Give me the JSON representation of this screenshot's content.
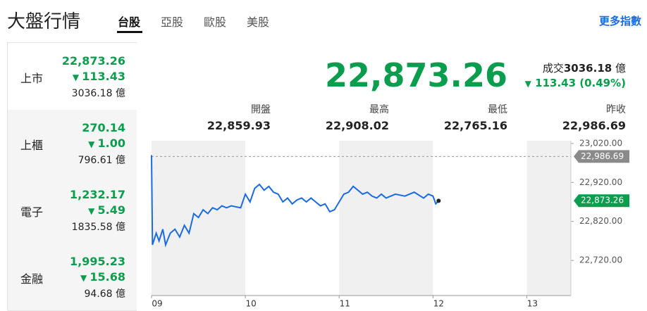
{
  "header": {
    "title": "大盤行情",
    "tabs": [
      "台股",
      "亞股",
      "歐股",
      "美股"
    ],
    "more_link": "更多指數"
  },
  "indices": [
    {
      "name": "上市",
      "value": "22,873.26",
      "change": "113.43",
      "volume": "3036.18 億"
    },
    {
      "name": "上櫃",
      "value": "270.14",
      "change": "1.00",
      "volume": "796.61 億"
    },
    {
      "name": "電子",
      "value": "1,232.17",
      "change": "5.49",
      "volume": "1835.58 億"
    },
    {
      "name": "金融",
      "value": "1,995.23",
      "change": "15.68",
      "volume": "94.68 億"
    }
  ],
  "quote": {
    "price": "22,873.26",
    "volume_label": "成交",
    "volume": "3036.18",
    "volume_unit": "億",
    "change": "113.43 (0.49%)"
  },
  "stats": [
    {
      "label": "開盤",
      "value": "22,859.93"
    },
    {
      "label": "最高",
      "value": "22,908.02"
    },
    {
      "label": "最低",
      "value": "22,765.16"
    },
    {
      "label": "昨收",
      "value": "22,986.69"
    }
  ],
  "chart_data": {
    "type": "line",
    "color": "#1a6be0",
    "x": [
      9.0,
      9.01,
      9.05,
      9.08,
      9.12,
      9.15,
      9.2,
      9.25,
      9.3,
      9.35,
      9.4,
      9.45,
      9.5,
      9.55,
      9.6,
      9.65,
      9.7,
      9.75,
      9.8,
      9.85,
      9.95,
      10.0,
      10.05,
      10.1,
      10.15,
      10.2,
      10.25,
      10.3,
      10.35,
      10.4,
      10.45,
      10.5,
      10.55,
      10.6,
      10.65,
      10.7,
      10.75,
      10.8,
      10.85,
      10.9,
      10.95,
      11.0,
      11.05,
      11.1,
      11.15,
      11.2,
      11.25,
      11.3,
      11.35,
      11.4,
      11.45,
      11.5,
      11.55,
      11.6,
      11.7,
      11.8,
      11.9,
      11.95,
      12.0,
      12.03,
      12.06
    ],
    "values": [
      22990,
      22760,
      22790,
      22770,
      22800,
      22760,
      22790,
      22800,
      22780,
      22810,
      22790,
      22840,
      22830,
      22850,
      22840,
      22855,
      22850,
      22860,
      22855,
      22860,
      22855,
      22890,
      22870,
      22905,
      22915,
      22900,
      22910,
      22895,
      22890,
      22870,
      22880,
      22865,
      22875,
      22880,
      22870,
      22880,
      22870,
      22860,
      22865,
      22845,
      22850,
      22870,
      22890,
      22895,
      22910,
      22900,
      22890,
      22895,
      22885,
      22880,
      22890,
      22880,
      22885,
      22890,
      22885,
      22895,
      22880,
      22890,
      22885,
      22865,
      22873
    ],
    "xlim": [
      9,
      13.47
    ],
    "ylim": [
      22630,
      23027
    ],
    "xticks": [
      {
        "value": 9,
        "label": "09"
      },
      10,
      11,
      12,
      13
    ],
    "yticks": [
      {
        "value": 23020,
        "label": "23,020.00"
      },
      {
        "value": 22920,
        "label": "22,920.00"
      },
      {
        "value": 22820,
        "label": "22,820.00"
      },
      {
        "value": 22720,
        "label": "22,720.00"
      }
    ],
    "reference": {
      "value": 22986.69,
      "label": "22,986.69"
    },
    "last": {
      "value": 22873.26,
      "label": "22,873.26"
    }
  }
}
